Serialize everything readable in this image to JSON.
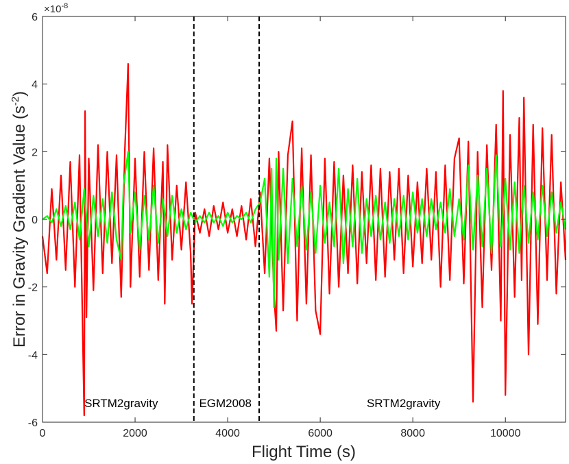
{
  "chart_data": {
    "type": "line",
    "xlabel": "Flight Time (s)",
    "ylabel_main": "Error in Gravity Gradient Value (s",
    "ylabel_sup": "-2",
    "ylabel_close": ")",
    "y_exponent_base": "×10",
    "y_exponent_power": "-8",
    "xlim": [
      0,
      11300
    ],
    "ylim": [
      -6,
      6
    ],
    "xticks": [
      0,
      2000,
      4000,
      6000,
      8000,
      10000
    ],
    "xtick_labels": [
      "0",
      "2000",
      "4000",
      "6000",
      "8000",
      "10000"
    ],
    "yticks": [
      -6,
      -4,
      -2,
      0,
      2,
      4,
      6
    ],
    "ytick_labels": [
      "-6",
      "-4",
      "-2",
      "0",
      "2",
      "4",
      "6"
    ],
    "vlines": [
      3270,
      4680
    ],
    "regions": [
      {
        "label": "SRTM2gravity",
        "x": 1700
      },
      {
        "label": "EGM2008",
        "x": 3950
      },
      {
        "label": "SRTM2gravity",
        "x": 7800
      }
    ],
    "series": [
      {
        "color": "#ff0000",
        "x": [
          0,
          100,
          200,
          300,
          400,
          500,
          600,
          700,
          800,
          900,
          920,
          950,
          1000,
          1100,
          1200,
          1300,
          1400,
          1500,
          1600,
          1700,
          1780,
          1850,
          1900,
          2000,
          2100,
          2200,
          2300,
          2400,
          2500,
          2600,
          2640,
          2700,
          2800,
          2900,
          3000,
          3100,
          3200,
          3230,
          3300,
          3400,
          3500,
          3600,
          3700,
          3800,
          3900,
          4000,
          4100,
          4200,
          4300,
          4400,
          4500,
          4600,
          4700,
          4800,
          4900,
          5000,
          5050,
          5100,
          5200,
          5300,
          5400,
          5500,
          5600,
          5700,
          5800,
          5900,
          6000,
          6100,
          6200,
          6300,
          6400,
          6500,
          6600,
          6700,
          6800,
          6900,
          7000,
          7100,
          7200,
          7300,
          7400,
          7500,
          7600,
          7700,
          7800,
          7900,
          8000,
          8100,
          8200,
          8300,
          8400,
          8500,
          8600,
          8700,
          8800,
          8900,
          9000,
          9100,
          9200,
          9300,
          9400,
          9500,
          9600,
          9700,
          9800,
          9900,
          9950,
          10000,
          10100,
          10200,
          10300,
          10350,
          10400,
          10500,
          10600,
          10700,
          10800,
          10900,
          11000,
          11100,
          11200,
          11300
        ],
        "y": [
          -0.5,
          -1.6,
          0.9,
          -1.2,
          1.3,
          -1.5,
          1.7,
          -2.0,
          1.9,
          -5.8,
          3.2,
          -2.9,
          1.8,
          -2.1,
          2.2,
          -1.6,
          2.0,
          -1.3,
          1.9,
          -2.3,
          2.1,
          4.6,
          -2.0,
          1.8,
          -1.7,
          2.0,
          -1.5,
          2.1,
          -1.8,
          1.7,
          -2.5,
          2.2,
          -1.2,
          1.0,
          -0.9,
          1.1,
          -1.0,
          -2.5,
          0.2,
          -0.4,
          0.3,
          -0.5,
          0.4,
          -0.3,
          0.5,
          -0.4,
          0.3,
          -0.5,
          0.4,
          -0.6,
          0.6,
          -0.8,
          0.8,
          -1.6,
          1.8,
          -2.2,
          -3.3,
          2.0,
          -2.7,
          1.9,
          2.9,
          -3.0,
          2.1,
          -2.5,
          1.9,
          -2.7,
          -3.4,
          1.8,
          -2.2,
          1.7,
          -2.0,
          1.3,
          -1.6,
          1.6,
          -1.9,
          1.4,
          -1.3,
          1.6,
          -1.8,
          1.5,
          -1.7,
          1.4,
          -1.2,
          1.5,
          -1.6,
          1.3,
          -1.4,
          1.1,
          -1.3,
          1.5,
          -1.2,
          1.4,
          -2.0,
          1.6,
          -1.8,
          1.8,
          2.4,
          -1.9,
          2.3,
          -5.4,
          2.0,
          -2.6,
          2.2,
          -1.5,
          2.8,
          -3.0,
          3.8,
          -5.2,
          2.5,
          -2.3,
          3.0,
          -1.8,
          3.6,
          -4.0,
          2.8,
          -3.1,
          2.7,
          -1.8,
          2.5,
          -2.2,
          1.1,
          -1.2
        ]
      },
      {
        "color": "#00ff00",
        "x": [
          0,
          100,
          200,
          300,
          400,
          500,
          600,
          700,
          800,
          900,
          1000,
          1100,
          1200,
          1300,
          1400,
          1500,
          1600,
          1700,
          1750,
          1850,
          1900,
          2000,
          2100,
          2200,
          2300,
          2400,
          2500,
          2600,
          2700,
          2800,
          2900,
          3000,
          3100,
          3200,
          3300,
          3400,
          3500,
          3600,
          3700,
          3800,
          3900,
          4000,
          4100,
          4200,
          4300,
          4400,
          4500,
          4600,
          4700,
          4800,
          4900,
          4950,
          5000,
          5050,
          5100,
          5200,
          5300,
          5400,
          5500,
          5600,
          5700,
          5800,
          5900,
          6000,
          6100,
          6200,
          6300,
          6400,
          6500,
          6600,
          6700,
          6800,
          6900,
          7000,
          7100,
          7200,
          7300,
          7400,
          7500,
          7600,
          7700,
          7800,
          7900,
          8000,
          8100,
          8200,
          8300,
          8400,
          8500,
          8600,
          8700,
          8800,
          8900,
          9000,
          9100,
          9200,
          9300,
          9400,
          9500,
          9600,
          9700,
          9800,
          9900,
          10000,
          10100,
          10200,
          10300,
          10400,
          10500,
          10600,
          10700,
          10800,
          10900,
          11000,
          11100,
          11200,
          11300
        ],
        "y": [
          0.0,
          0.1,
          -0.1,
          0.3,
          -0.2,
          0.4,
          -0.3,
          0.5,
          -0.6,
          0.9,
          -0.8,
          0.7,
          -0.5,
          0.6,
          -0.7,
          0.8,
          -0.6,
          -1.2,
          1.0,
          2.0,
          -0.4,
          0.8,
          -0.9,
          0.7,
          -0.6,
          1.0,
          -0.7,
          0.6,
          -0.5,
          0.7,
          -0.4,
          0.3,
          -0.3,
          0.2,
          -0.1,
          0.1,
          -0.1,
          0.2,
          -0.1,
          0.1,
          -0.2,
          0.2,
          -0.1,
          0.1,
          0.0,
          0.2,
          -0.1,
          0.3,
          0.5,
          1.2,
          -1.7,
          1.5,
          -2.6,
          1.8,
          -1.2,
          1.5,
          -1.3,
          1.2,
          -0.8,
          1.0,
          -0.9,
          0.8,
          -1.0,
          1.0,
          -0.7,
          0.5,
          -0.8,
          1.5,
          -1.3,
          0.9,
          -0.8,
          1.2,
          -1.0,
          0.6,
          -0.5,
          0.7,
          -0.6,
          0.5,
          -0.7,
          0.6,
          -0.5,
          0.7,
          -0.6,
          0.8,
          -0.4,
          0.6,
          -0.5,
          0.6,
          -0.3,
          0.5,
          -0.4,
          0.9,
          -0.5,
          0.6,
          -0.6,
          1.6,
          -0.9,
          1.3,
          -0.8,
          1.5,
          -1.0,
          1.9,
          -0.8,
          1.2,
          -0.9,
          1.1,
          -1.0,
          1.0,
          -0.7,
          0.8,
          -0.6,
          1.0,
          -0.5,
          0.8,
          -0.4,
          0.5,
          -0.3
        ]
      }
    ]
  }
}
